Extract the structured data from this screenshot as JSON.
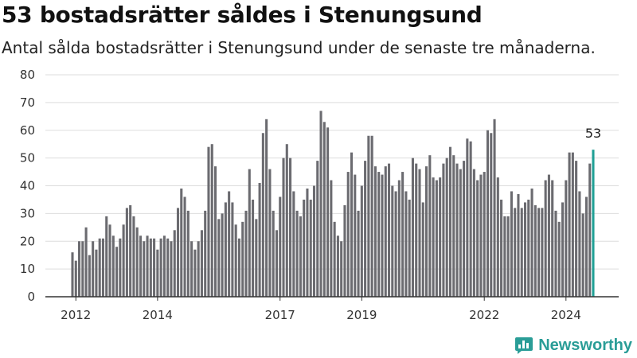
{
  "title": "53 bostadsrätter såldes i Stenungsund",
  "subtitle": "Antal sålda bostadsrätter i Stenungsund under de senaste tre månaderna.",
  "brand": {
    "name": "Newsworthy",
    "icon": "newsworthy-logo-icon",
    "color": "#2a9d97"
  },
  "colors": {
    "bar": "#6b6b70",
    "highlight": "#21a096",
    "grid": "#dddddd",
    "axis": "#333333"
  },
  "chart_data": {
    "type": "bar",
    "x_start": "2011-12",
    "interval": "month",
    "ylim": [
      0,
      80
    ],
    "yticks": [
      0,
      10,
      20,
      30,
      40,
      50,
      60,
      70,
      80
    ],
    "xticks": [
      "2012",
      "2014",
      "2017",
      "2019",
      "2022",
      "2024"
    ],
    "grid": true,
    "highlight_label": "53",
    "values": [
      16,
      13,
      20,
      20,
      25,
      15,
      20,
      17,
      21,
      21,
      29,
      26,
      22,
      18,
      21,
      26,
      32,
      33,
      29,
      25,
      22,
      20,
      22,
      21,
      21,
      17,
      21,
      22,
      21,
      20,
      24,
      32,
      39,
      36,
      31,
      20,
      17,
      20,
      24,
      31,
      54,
      55,
      47,
      28,
      30,
      34,
      38,
      34,
      26,
      21,
      27,
      31,
      46,
      35,
      28,
      41,
      59,
      64,
      46,
      31,
      24,
      36,
      50,
      55,
      50,
      38,
      31,
      29,
      35,
      39,
      35,
      40,
      49,
      67,
      63,
      61,
      42,
      27,
      22,
      20,
      33,
      45,
      52,
      44,
      31,
      40,
      49,
      58,
      58,
      47,
      45,
      44,
      47,
      48,
      40,
      38,
      42,
      45,
      38,
      35,
      50,
      48,
      46,
      34,
      47,
      51,
      43,
      42,
      43,
      48,
      50,
      54,
      51,
      48,
      46,
      49,
      57,
      56,
      46,
      42,
      44,
      45,
      60,
      59,
      64,
      43,
      35,
      29,
      29,
      38,
      32,
      37,
      32,
      34,
      35,
      39,
      33,
      32,
      32,
      42,
      44,
      42,
      31,
      27,
      34,
      42,
      52,
      52,
      49,
      38,
      30,
      36,
      48,
      53
    ]
  }
}
